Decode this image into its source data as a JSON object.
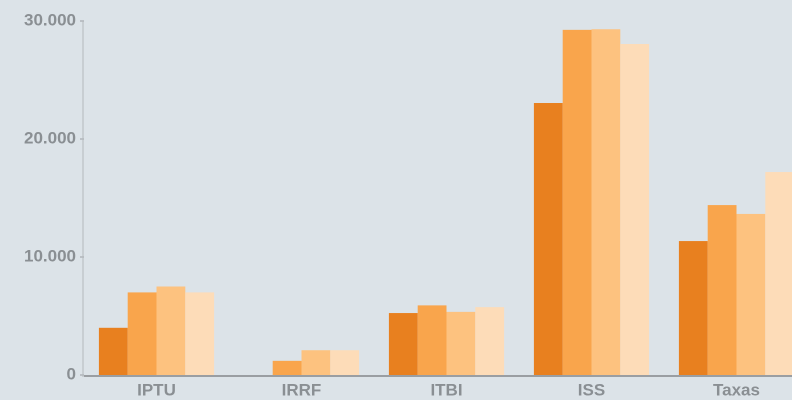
{
  "chart_data": {
    "type": "bar",
    "categories": [
      "IPTU",
      "IRRF",
      "ITBI",
      "ISS",
      "Taxas"
    ],
    "series": [
      {
        "color": "#e8801f",
        "values": [
          4000,
          null,
          5250,
          23050,
          11350
        ]
      },
      {
        "color": "#f9a54c",
        "values": [
          7000,
          1200,
          5900,
          29250,
          14400
        ]
      },
      {
        "color": "#fdc27f",
        "values": [
          7500,
          2100,
          5350,
          29300,
          13650
        ]
      },
      {
        "color": "#fddcb8",
        "values": [
          7000,
          2100,
          5750,
          28050,
          17200
        ]
      }
    ],
    "ylim": [
      0,
      30000
    ],
    "yticks": [
      0,
      {
        "value": 10000,
        "label": "10.000"
      },
      {
        "value": 20000,
        "label": "20.000"
      },
      {
        "value": 30000,
        "label": "30.000"
      }
    ]
  }
}
